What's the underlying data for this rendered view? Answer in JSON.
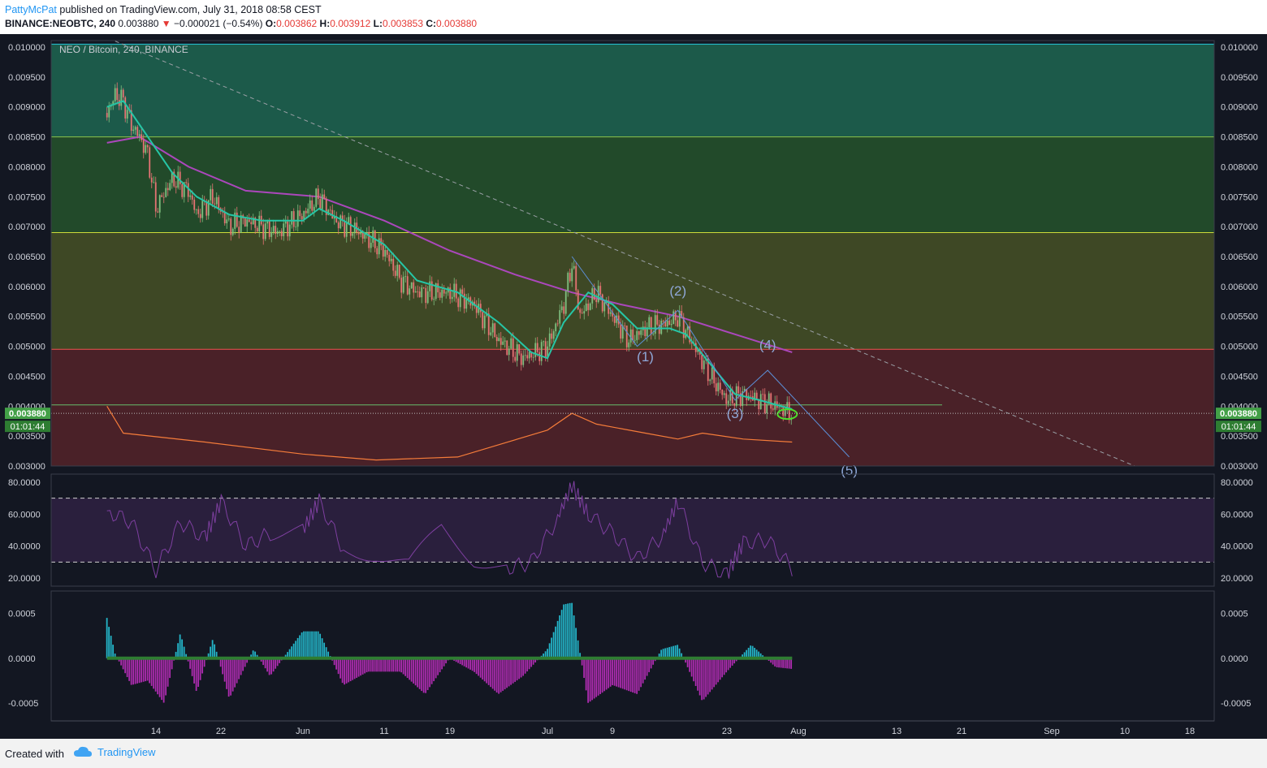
{
  "header": {
    "author": "PattyMcPat",
    "published": "published on TradingView.com, July 31, 2018 08:58 CEST",
    "symbol": "BINANCE:NEOBTC, 240",
    "last": "0.003880",
    "change_arrow": "▼",
    "change": "−0.000021 (−0.54%)",
    "o_label": "O:",
    "o": "0.003862",
    "h_label": "H:",
    "h": "0.003912",
    "l_label": "L:",
    "l": "0.003853",
    "c_label": "C:",
    "c": "0.003880"
  },
  "footer": {
    "created": "Created with",
    "brand": "TradingView"
  },
  "chart_data": [
    {
      "type": "candlestick",
      "title": "NEO / Bitcoin, 240, BINANCE",
      "ylim": [
        0.003,
        0.0101
      ],
      "y_ticks": [
        "0.003000",
        "0.003500",
        "0.004000",
        "0.004500",
        "0.005000",
        "0.005500",
        "0.006000",
        "0.006500",
        "0.007000",
        "0.007500",
        "0.008000",
        "0.008500",
        "0.009000",
        "0.009500",
        "0.010000"
      ],
      "x_ticks": [
        "14",
        "22",
        "Jun",
        "11",
        "19",
        "Jul",
        "9",
        "23",
        "Aug",
        "13",
        "21",
        "Sep",
        "10",
        "18"
      ],
      "price_label": "0.003880",
      "countdown": "01:01:44",
      "close_path": [
        [
          "May 8",
          0.0089
        ],
        [
          "May 9",
          0.0092
        ],
        [
          "May 10",
          0.0091
        ],
        [
          "May 11",
          0.0087
        ],
        [
          "May 12",
          0.0085
        ],
        [
          "May 13",
          0.0082
        ],
        [
          "May 14",
          0.0073
        ],
        [
          "May 16",
          0.0078
        ],
        [
          "May 18",
          0.0076
        ],
        [
          "May 19",
          0.0072
        ],
        [
          "May 21",
          0.0075
        ],
        [
          "May 23",
          0.007
        ],
        [
          "May 25",
          0.0071
        ],
        [
          "May 27",
          0.007
        ],
        [
          "May 29",
          0.0069
        ],
        [
          "Jun 1",
          0.0072
        ],
        [
          "Jun 3",
          0.0075
        ],
        [
          "Jun 5",
          0.0071
        ],
        [
          "Jun 8",
          0.0069
        ],
        [
          "Jun 11",
          0.0066
        ],
        [
          "Jun 13",
          0.0061
        ],
        [
          "Jun 15",
          0.0059
        ],
        [
          "Jun 19",
          0.0059
        ],
        [
          "Jun 22",
          0.0057
        ],
        [
          "Jun 25",
          0.0051
        ],
        [
          "Jun 28",
          0.0048
        ],
        [
          "Jul 1",
          0.005
        ],
        [
          "Jul 3",
          0.0057
        ],
        [
          "Jul 4",
          0.0064
        ],
        [
          "Jul 5",
          0.0055
        ],
        [
          "Jul 7",
          0.0059
        ],
        [
          "Jul 9",
          0.0055
        ],
        [
          "Jul 11",
          0.0051
        ],
        [
          "Jul 13",
          0.0053
        ],
        [
          "Jul 16",
          0.0054
        ],
        [
          "Jul 17",
          0.0055
        ],
        [
          "Jul 19",
          0.005
        ],
        [
          "Jul 21",
          0.0045
        ],
        [
          "Jul 23",
          0.0041
        ],
        [
          "Jul 25",
          0.0042
        ],
        [
          "Jul 27",
          0.0041
        ],
        [
          "Jul 29",
          0.004
        ],
        [
          "Jul 31",
          0.00388
        ]
      ],
      "ema_path": [
        [
          "May 8",
          0.009
        ],
        [
          "May 10",
          0.0091
        ],
        [
          "May 13",
          0.0085
        ],
        [
          "May 16",
          0.0079
        ],
        [
          "May 19",
          0.0075
        ],
        [
          "May 23",
          0.0072
        ],
        [
          "May 27",
          0.0071
        ],
        [
          "Jun 1",
          0.0071
        ],
        [
          "Jun 3",
          0.0073
        ],
        [
          "Jun 6",
          0.0071
        ],
        [
          "Jun 11",
          0.0067
        ],
        [
          "Jun 15",
          0.0061
        ],
        [
          "Jun 20",
          0.0059
        ],
        [
          "Jun 25",
          0.0054
        ],
        [
          "Jun 29",
          0.0049
        ],
        [
          "Jul 1",
          0.0048
        ],
        [
          "Jul 3",
          0.0054
        ],
        [
          "Jul 6",
          0.0059
        ],
        [
          "Jul 9",
          0.0057
        ],
        [
          "Jul 12",
          0.0053
        ],
        [
          "Jul 16",
          0.0053
        ],
        [
          "Jul 18",
          0.0052
        ],
        [
          "Jul 21",
          0.0047
        ],
        [
          "Jul 24",
          0.0042
        ],
        [
          "Jul 27",
          0.0041
        ],
        [
          "Jul 31",
          0.00395
        ]
      ],
      "sma_path": [
        [
          "May 8",
          0.0084
        ],
        [
          "May 12",
          0.0085
        ],
        [
          "May 18",
          0.008
        ],
        [
          "May 25",
          0.0076
        ],
        [
          "Jun 3",
          0.0075
        ],
        [
          "Jun 11",
          0.0071
        ],
        [
          "Jun 19",
          0.0066
        ],
        [
          "Jun 27",
          0.0062
        ],
        [
          "Jul 4",
          0.0059
        ],
        [
          "Jul 10",
          0.0057
        ],
        [
          "Jul 17",
          0.0055
        ],
        [
          "Jul 24",
          0.0052
        ],
        [
          "Jul 31",
          0.0049
        ]
      ],
      "horizontal_levels": [
        {
          "price": 0.01005,
          "color": "#26c6da"
        },
        {
          "price": 0.0085,
          "color": "#8bc34a"
        },
        {
          "price": 0.0069,
          "color": "#cddc39"
        },
        {
          "price": 0.00495,
          "color": "#ef5350"
        },
        {
          "price": 0.00402,
          "color": "#66bb6a"
        }
      ],
      "zones": [
        {
          "from": 0.0085,
          "to": 0.01005,
          "color": "#1c5a4a"
        },
        {
          "from": 0.0069,
          "to": 0.0085,
          "color": "#224a2a"
        },
        {
          "from": 0.00495,
          "to": 0.0069,
          "color": "#3e4825"
        },
        {
          "from": 0.003,
          "to": 0.00495,
          "color": "#4a2128"
        }
      ],
      "trendline": {
        "from": [
          "May 9",
          0.0101
        ],
        "to": [
          "Sep 11",
          0.003
        ]
      },
      "wave_labels": [
        {
          "label": "(1)",
          "date": "Jul 13",
          "price": 0.00475
        },
        {
          "label": "(2)",
          "date": "Jul 17",
          "price": 0.00585
        },
        {
          "label": "(3)",
          "date": "Jul 24",
          "price": 0.0038
        },
        {
          "label": "(4)",
          "date": "Jul 28",
          "price": 0.00495
        },
        {
          "label": "(5)",
          "date": "Aug 7",
          "price": 0.00285
        }
      ],
      "wave_path": [
        [
          "Jul 4",
          0.0065
        ],
        [
          "Jul 12",
          0.005
        ],
        [
          "Jul 17",
          0.0056
        ],
        [
          "Jul 24",
          0.0041
        ],
        [
          "Jul 28",
          0.0046
        ],
        [
          "Aug 7",
          0.00315
        ]
      ],
      "volume_curve": [
        [
          "May 8",
          0.004
        ],
        [
          "May 10",
          0.00355
        ],
        [
          "May 20",
          0.0034
        ],
        [
          "Jun 1",
          0.0032
        ],
        [
          "Jun 10",
          0.0031
        ],
        [
          "Jun 20",
          0.00315
        ],
        [
          "Jul 1",
          0.0036
        ],
        [
          "Jul 4",
          0.00388
        ],
        [
          "Jul 7",
          0.0037
        ],
        [
          "Jul 13",
          0.00355
        ],
        [
          "Jul 17",
          0.00345
        ],
        [
          "Jul 20",
          0.00355
        ],
        [
          "Jul 25",
          0.00345
        ],
        [
          "Jul 31",
          0.0034
        ]
      ]
    },
    {
      "type": "line",
      "name": "RSI",
      "ylim": [
        15,
        85
      ],
      "y_ticks": [
        "20.0000",
        "40.0000",
        "60.0000",
        "80.0000"
      ],
      "bands": [
        30,
        70
      ],
      "path": [
        [
          "May 8",
          62
        ],
        [
          "May 11",
          55
        ],
        [
          "May 14",
          25
        ],
        [
          "May 17",
          55
        ],
        [
          "May 20",
          45
        ],
        [
          "May 22",
          68
        ],
        [
          "May 25",
          40
        ],
        [
          "May 28",
          48
        ],
        [
          "Jun 1",
          50
        ],
        [
          "Jun 3",
          68
        ],
        [
          "Jun 6",
          38
        ],
        [
          "Jun 10",
          35
        ],
        [
          "Jun 14",
          28
        ],
        [
          "Jun 18",
          52
        ],
        [
          "Jun 22",
          32
        ],
        [
          "Jun 26",
          26
        ],
        [
          "Jun 29",
          30
        ],
        [
          "Jul 2",
          55
        ],
        [
          "Jul 4",
          78
        ],
        [
          "Jul 6",
          60
        ],
        [
          "Jul 9",
          48
        ],
        [
          "Jul 12",
          32
        ],
        [
          "Jul 15",
          46
        ],
        [
          "Jul 17",
          68
        ],
        [
          "Jul 20",
          30
        ],
        [
          "Jul 23",
          22
        ],
        [
          "Jul 25",
          42
        ],
        [
          "Jul 28",
          44
        ],
        [
          "Jul 31",
          26
        ]
      ]
    },
    {
      "type": "bar",
      "name": "Momentum",
      "ylim": [
        -0.0007,
        0.00075
      ],
      "y_ticks": [
        "0.0005",
        "0.0000",
        "-0.0005"
      ],
      "path": [
        [
          "May 8",
          0.00045
        ],
        [
          "May 9",
          5e-05
        ],
        [
          "May 11",
          -0.0003
        ],
        [
          "May 13",
          -0.00025
        ],
        [
          "May 15",
          -0.0005
        ],
        [
          "May 17",
          0.00028
        ],
        [
          "May 19",
          -0.00038
        ],
        [
          "May 21",
          0.00022
        ],
        [
          "May 23",
          -0.00045
        ],
        [
          "May 26",
          0.0001
        ],
        [
          "May 28",
          -0.0002
        ],
        [
          "Jun 1",
          0.0003
        ],
        [
          "Jun 3",
          0.0003
        ],
        [
          "Jun 6",
          -0.0003
        ],
        [
          "Jun 9",
          -0.00015
        ],
        [
          "Jun 13",
          -0.00015
        ],
        [
          "Jun 16",
          -0.0004
        ],
        [
          "Jun 19",
          0.0
        ],
        [
          "Jun 22",
          -0.00015
        ],
        [
          "Jun 25",
          -0.0004
        ],
        [
          "Jun 28",
          -0.0002
        ],
        [
          "Jul 1",
          0.0001
        ],
        [
          "Jul 3",
          0.0006
        ],
        [
          "Jul 4",
          0.00062
        ],
        [
          "Jul 6",
          -0.0005
        ],
        [
          "Jul 9",
          -0.0003
        ],
        [
          "Jul 12",
          -0.0004
        ],
        [
          "Jul 15",
          0.0001
        ],
        [
          "Jul 17",
          0.00015
        ],
        [
          "Jul 20",
          -0.00048
        ],
        [
          "Jul 23",
          -0.00015
        ],
        [
          "Jul 26",
          0.00015
        ],
        [
          "Jul 29",
          -0.0001
        ],
        [
          "Jul 31",
          -0.00012
        ]
      ]
    }
  ]
}
